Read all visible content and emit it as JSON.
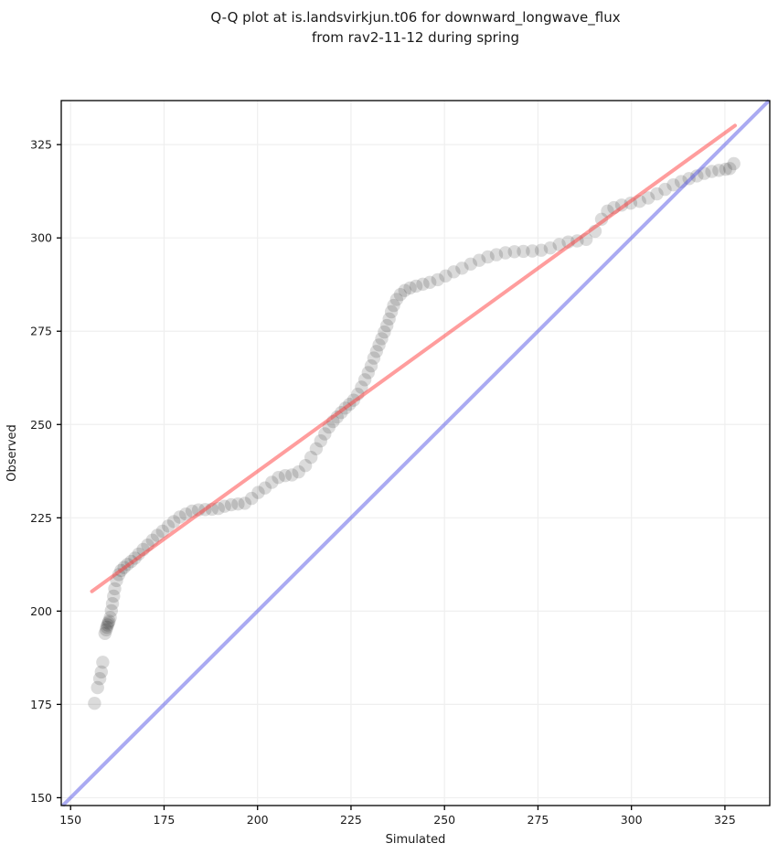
{
  "chart_data": {
    "type": "scatter",
    "title_line1": "Q-Q plot at is.landsvirkjun.t06 for downward_longwave_flux",
    "title_line2": "from rav2-11-12 during spring",
    "xlabel": "Simulated",
    "ylabel": "Observed",
    "xlim": [
      147.5,
      337.0
    ],
    "ylim": [
      147.9,
      336.8
    ],
    "xticks": [
      150,
      175,
      200,
      225,
      250,
      275,
      300,
      325
    ],
    "yticks": [
      150,
      175,
      200,
      225,
      250,
      275,
      300,
      325
    ],
    "grid": true,
    "grid_color": "#efefef",
    "axis_color": "#000000",
    "legend": "none",
    "identity_line": {
      "name": "1:1 line",
      "color": "#5555e6",
      "opacity": 0.5,
      "width": 4,
      "x": [
        147.9,
        336.8
      ],
      "y": [
        147.9,
        336.8
      ]
    },
    "fit_line": {
      "name": "fit line",
      "color": "#ff3c3c",
      "opacity": 0.5,
      "width": 4,
      "x": [
        155.7,
        327.7
      ],
      "y": [
        205.3,
        330.1
      ]
    },
    "marker": {
      "color": "#000000",
      "opacity": 0.14,
      "radius": 7.2
    },
    "points": [
      [
        156.4,
        175.3
      ],
      [
        157.2,
        179.5
      ],
      [
        157.8,
        181.9
      ],
      [
        158.2,
        183.7
      ],
      [
        158.6,
        186.3
      ],
      [
        159.2,
        194.0
      ],
      [
        159.5,
        195.0
      ],
      [
        159.7,
        195.7
      ],
      [
        159.9,
        196.3
      ],
      [
        160.1,
        196.8
      ],
      [
        160.3,
        197.3
      ],
      [
        160.6,
        198.3
      ],
      [
        160.9,
        200.1
      ],
      [
        161.2,
        202.0
      ],
      [
        161.5,
        204.0
      ],
      [
        161.8,
        206.0
      ],
      [
        162.3,
        208.2
      ],
      [
        162.9,
        209.8
      ],
      [
        163.5,
        210.9
      ],
      [
        164.3,
        211.7
      ],
      [
        165.2,
        212.5
      ],
      [
        166.2,
        213.3
      ],
      [
        167.2,
        214.2
      ],
      [
        168.2,
        215.3
      ],
      [
        169.4,
        216.5
      ],
      [
        170.6,
        217.7
      ],
      [
        171.9,
        219.0
      ],
      [
        173.2,
        220.3
      ],
      [
        174.6,
        221.4
      ],
      [
        176.1,
        222.8
      ],
      [
        177.6,
        224.0
      ],
      [
        179.2,
        225.2
      ],
      [
        180.8,
        226.0
      ],
      [
        182.5,
        226.8
      ],
      [
        184.2,
        227.1
      ],
      [
        186.0,
        227.2
      ],
      [
        187.8,
        227.3
      ],
      [
        189.5,
        227.5
      ],
      [
        191.2,
        228.1
      ],
      [
        193.0,
        228.5
      ],
      [
        194.8,
        228.7
      ],
      [
        196.6,
        228.9
      ],
      [
        198.4,
        230.2
      ],
      [
        200.2,
        231.8
      ],
      [
        202.0,
        233.0
      ],
      [
        203.8,
        234.5
      ],
      [
        205.6,
        235.8
      ],
      [
        207.4,
        236.3
      ],
      [
        209.2,
        236.5
      ],
      [
        211.0,
        237.3
      ],
      [
        212.8,
        239.0
      ],
      [
        214.3,
        241.2
      ],
      [
        215.7,
        243.5
      ],
      [
        216.9,
        245.6
      ],
      [
        218.0,
        247.5
      ],
      [
        219.1,
        249.3
      ],
      [
        220.2,
        250.8
      ],
      [
        221.3,
        252.0
      ],
      [
        222.4,
        253.2
      ],
      [
        223.5,
        254.4
      ],
      [
        224.6,
        255.4
      ],
      [
        225.7,
        256.5
      ],
      [
        226.8,
        258.1
      ],
      [
        227.8,
        260.0
      ],
      [
        228.7,
        262.0
      ],
      [
        229.6,
        263.9
      ],
      [
        230.4,
        265.7
      ],
      [
        231.1,
        267.8
      ],
      [
        231.8,
        269.6
      ],
      [
        232.5,
        271.3
      ],
      [
        233.2,
        273.0
      ],
      [
        233.9,
        274.8
      ],
      [
        234.6,
        276.5
      ],
      [
        235.2,
        278.3
      ],
      [
        235.8,
        280.2
      ],
      [
        236.4,
        281.9
      ],
      [
        237.2,
        283.5
      ],
      [
        238.2,
        284.8
      ],
      [
        239.4,
        285.9
      ],
      [
        240.8,
        286.6
      ],
      [
        242.4,
        287.1
      ],
      [
        244.2,
        287.6
      ],
      [
        246.1,
        288.1
      ],
      [
        248.2,
        288.8
      ],
      [
        250.3,
        289.8
      ],
      [
        252.5,
        290.9
      ],
      [
        254.7,
        291.9
      ],
      [
        257.0,
        293.0
      ],
      [
        259.3,
        294.0
      ],
      [
        261.6,
        294.9
      ],
      [
        263.9,
        295.5
      ],
      [
        266.3,
        296.0
      ],
      [
        268.7,
        296.3
      ],
      [
        271.1,
        296.4
      ],
      [
        273.5,
        296.5
      ],
      [
        275.9,
        296.7
      ],
      [
        278.3,
        297.3
      ],
      [
        280.7,
        298.2
      ],
      [
        283.1,
        298.9
      ],
      [
        285.5,
        299.2
      ],
      [
        287.9,
        299.6
      ],
      [
        290.3,
        301.8
      ],
      [
        292.0,
        305.0
      ],
      [
        293.6,
        307.2
      ],
      [
        295.3,
        308.1
      ],
      [
        297.4,
        308.8
      ],
      [
        299.8,
        309.3
      ],
      [
        302.2,
        309.8
      ],
      [
        304.5,
        310.7
      ],
      [
        306.8,
        311.8
      ],
      [
        309.0,
        313.0
      ],
      [
        311.2,
        314.2
      ],
      [
        313.3,
        315.1
      ],
      [
        315.4,
        315.9
      ],
      [
        317.5,
        316.6
      ],
      [
        319.5,
        317.3
      ],
      [
        321.5,
        317.8
      ],
      [
        323.4,
        318.1
      ],
      [
        325.2,
        318.4
      ],
      [
        326.3,
        318.6
      ],
      [
        327.4,
        319.9
      ]
    ]
  }
}
